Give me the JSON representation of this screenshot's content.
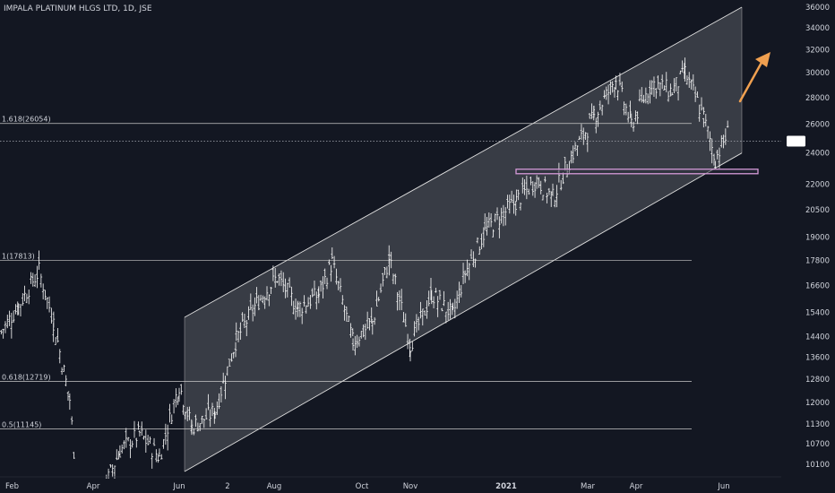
{
  "chart_data": {
    "type": "ohlc-bar",
    "title": "IMPALA PLATINUM HLGS LTD, 1D, JSE",
    "y_axis": {
      "side": "right",
      "scale": "log",
      "ticks": [
        36000,
        34000,
        32000,
        30000,
        28000,
        26000,
        24000,
        22000,
        20500,
        19000,
        17800,
        16600,
        15400,
        14400,
        13600,
        12800,
        12000,
        11300,
        10700,
        10100
      ]
    },
    "x_axis": {
      "ticks": [
        "Feb",
        "Apr",
        "Jun",
        "2",
        "Aug",
        "Oct",
        "Nov",
        "2021",
        "Mar",
        "Apr",
        "Jun"
      ]
    },
    "fib_levels": [
      {
        "label": "1.618(26054)",
        "value": 26054
      },
      {
        "label": "1(17813)",
        "value": 17813
      },
      {
        "label": "0.618(12719)",
        "value": 12719
      },
      {
        "label": "0.5(11145)",
        "value": 11145
      }
    ],
    "channel": {
      "upper_start_value": 15200,
      "upper_end_value": 36000,
      "lower_start_value": 9900,
      "lower_end_value": 24000
    },
    "support_zone": {
      "value": 22800
    },
    "current_price": {
      "value": 24800,
      "style": "dotted"
    },
    "price_series": [
      {
        "date": "2020-01-28",
        "close": 14600
      },
      {
        "date": "2020-02-10",
        "close": 15700
      },
      {
        "date": "2020-02-24",
        "close": 17300
      },
      {
        "date": "2020-03-05",
        "close": 15000
      },
      {
        "date": "2020-03-16",
        "close": 12100
      },
      {
        "date": "2020-03-23",
        "close": 8500
      },
      {
        "date": "2020-04-06",
        "close": 9200
      },
      {
        "date": "2020-04-20",
        "close": 10500
      },
      {
        "date": "2020-05-04",
        "close": 11000
      },
      {
        "date": "2020-05-18",
        "close": 10300
      },
      {
        "date": "2020-06-01",
        "close": 12600
      },
      {
        "date": "2020-06-12",
        "close": 11200
      },
      {
        "date": "2020-06-25",
        "close": 11700
      },
      {
        "date": "2020-07-08",
        "close": 14300
      },
      {
        "date": "2020-07-22",
        "close": 15800
      },
      {
        "date": "2020-08-05",
        "close": 17000
      },
      {
        "date": "2020-08-19",
        "close": 15600
      },
      {
        "date": "2020-09-02",
        "close": 16200
      },
      {
        "date": "2020-09-11",
        "close": 17700
      },
      {
        "date": "2020-09-25",
        "close": 14200
      },
      {
        "date": "2020-10-08",
        "close": 15000
      },
      {
        "date": "2020-10-19",
        "close": 17900
      },
      {
        "date": "2020-11-02",
        "close": 14100
      },
      {
        "date": "2020-11-16",
        "close": 16200
      },
      {
        "date": "2020-11-30",
        "close": 15300
      },
      {
        "date": "2020-12-08",
        "close": 17200
      },
      {
        "date": "2020-12-21",
        "close": 19300
      },
      {
        "date": "2021-01-11",
        "close": 21000
      },
      {
        "date": "2021-01-25",
        "close": 22300
      },
      {
        "date": "2021-02-05",
        "close": 21200
      },
      {
        "date": "2021-02-19",
        "close": 24000
      },
      {
        "date": "2021-03-05",
        "close": 26500
      },
      {
        "date": "2021-03-19",
        "close": 29500
      },
      {
        "date": "2021-03-29",
        "close": 26000
      },
      {
        "date": "2021-04-12",
        "close": 29200
      },
      {
        "date": "2021-04-26",
        "close": 28500
      },
      {
        "date": "2021-05-05",
        "close": 30000
      },
      {
        "date": "2021-05-18",
        "close": 26500
      },
      {
        "date": "2021-05-26",
        "close": 23600
      },
      {
        "date": "2021-06-04",
        "close": 25500
      }
    ],
    "annotation": {
      "type": "arrow",
      "direction": "up-right",
      "color": "#f0a050"
    },
    "grid": false,
    "colors": {
      "background": "#131722",
      "bars": "#ffffff",
      "channel_fill": "#ffffff",
      "channel_line": "#e0e0e0",
      "support": "#d59ad8",
      "price_label_bg": "#ffffff"
    }
  }
}
